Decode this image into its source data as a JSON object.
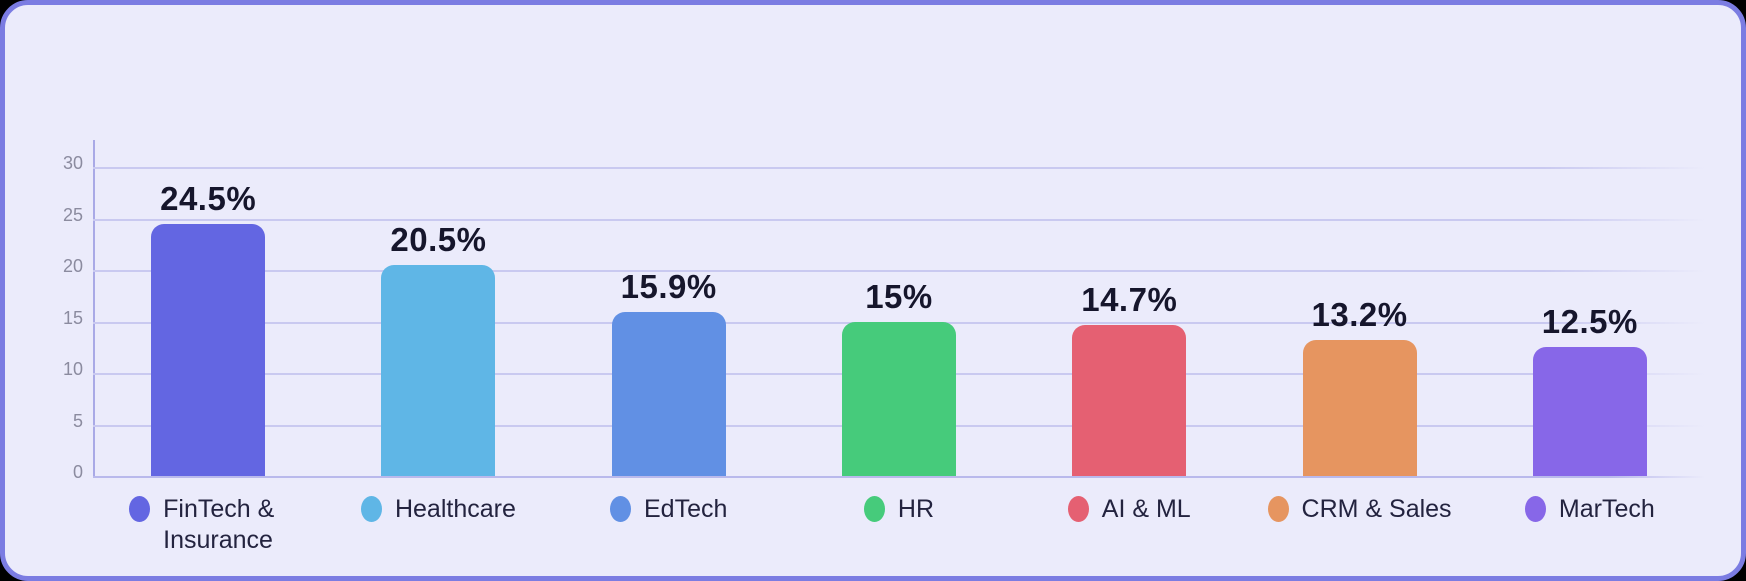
{
  "panel": {
    "background": "#EBEBFB",
    "border_color": "#7B7CE2",
    "outside_background": "#000000"
  },
  "chart_data": {
    "type": "bar",
    "title": "",
    "xlabel": "",
    "ylabel": "",
    "categories": [
      "FinTech & Insurance",
      "Healthcare",
      "EdTech",
      "HR",
      "AI & ML",
      "CRM & Sales",
      "MarTech"
    ],
    "values": [
      24.5,
      20.5,
      15.9,
      15,
      14.7,
      13.2,
      12.5
    ],
    "value_labels": [
      "24.5%",
      "20.5%",
      "15.9%",
      "15%",
      "14.7%",
      "13.2%",
      "12.5%"
    ],
    "bar_colors": [
      "#6366E2",
      "#5FB6E6",
      "#6190E4",
      "#46CB7B",
      "#E56072",
      "#E69560",
      "#8767E8"
    ],
    "ylim": [
      0,
      30
    ],
    "yticks": [
      0,
      5,
      10,
      15,
      20,
      25,
      30
    ],
    "grid": true,
    "gridline_color": "#C9C9F0",
    "axis_line_color": "#A9A9E6",
    "tick_label_color": "#8B8B9F",
    "value_label_color": "#16162C",
    "legend_position": "bottom-category-labels-with-dots"
  }
}
